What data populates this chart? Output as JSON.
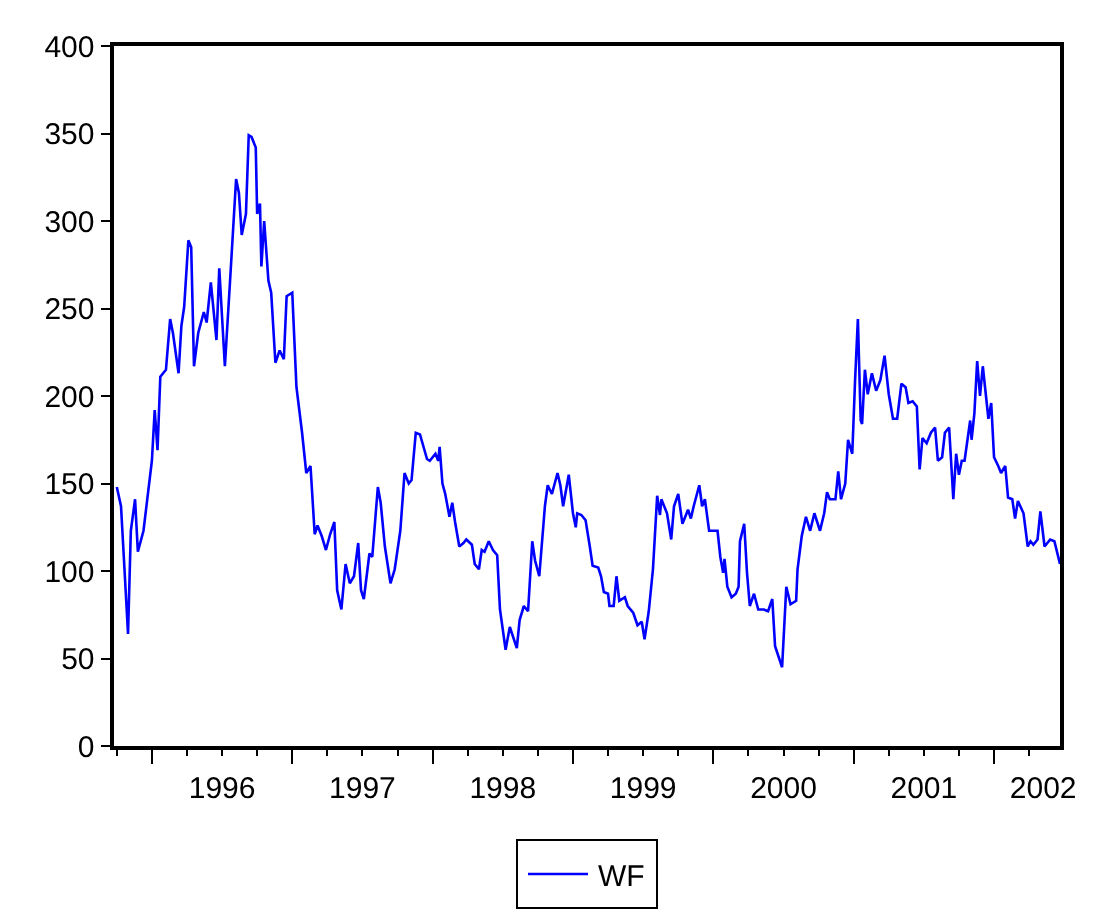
{
  "chart_data": {
    "type": "line",
    "xlim": [
      1995.73,
      2002.47
    ],
    "ylim": [
      0,
      400
    ],
    "xticks": [
      {
        "value": 1995.75,
        "label": null
      },
      {
        "value": 1996.25,
        "label": null
      },
      {
        "value": 1996.5,
        "label": null
      },
      {
        "value": 1996.75,
        "label": null
      },
      {
        "value": 1997.25,
        "label": null
      },
      {
        "value": 1997.5,
        "label": null
      },
      {
        "value": 1997.75,
        "label": null
      },
      {
        "value": 1998.25,
        "label": null
      },
      {
        "value": 1998.5,
        "label": null
      },
      {
        "value": 1998.75,
        "label": null
      },
      {
        "value": 1999.25,
        "label": null
      },
      {
        "value": 1999.5,
        "label": null
      },
      {
        "value": 1999.75,
        "label": null
      },
      {
        "value": 2000.25,
        "label": null
      },
      {
        "value": 2000.5,
        "label": null
      },
      {
        "value": 2000.75,
        "label": null
      },
      {
        "value": 2001.25,
        "label": null
      },
      {
        "value": 2001.5,
        "label": null
      },
      {
        "value": 2001.75,
        "label": null
      },
      {
        "value": 2002.25,
        "label": null
      },
      {
        "value": 1996,
        "label": null
      },
      {
        "value": 1997,
        "label": null
      },
      {
        "value": 1998,
        "label": null
      },
      {
        "value": 1999,
        "label": null
      },
      {
        "value": 2000,
        "label": null
      },
      {
        "value": 2001,
        "label": null
      },
      {
        "value": 2002,
        "label": null
      },
      {
        "value": 1996.5,
        "label": "1996"
      },
      {
        "value": 1997.5,
        "label": "1997"
      },
      {
        "value": 1998.5,
        "label": "1998"
      },
      {
        "value": 1999.5,
        "label": "1999"
      },
      {
        "value": 2000.5,
        "label": "2000"
      },
      {
        "value": 2001.5,
        "label": "2001"
      },
      {
        "value": 2002.35,
        "label": "2002"
      }
    ],
    "yticks": [
      0,
      50,
      100,
      150,
      200,
      250,
      300,
      350,
      400
    ],
    "grid": false,
    "legend": "bottom",
    "marker": "none",
    "line_style": "solid",
    "series": [
      {
        "name": "WF",
        "color": "#0000ff",
        "x": [
          1995.75,
          1995.78,
          1995.83,
          1995.85,
          1995.88,
          1995.9,
          1995.94,
          1996.0,
          1996.02,
          1996.04,
          1996.06,
          1996.1,
          1996.13,
          1996.15,
          1996.19,
          1996.21,
          1996.23,
          1996.26,
          1996.28,
          1996.3,
          1996.33,
          1996.37,
          1996.39,
          1996.42,
          1996.46,
          1996.48,
          1996.52,
          1996.56,
          1996.6,
          1996.62,
          1996.64,
          1996.67,
          1996.69,
          1996.71,
          1996.74,
          1996.75,
          1996.77,
          1996.78,
          1996.8,
          1996.83,
          1996.85,
          1996.88,
          1996.91,
          1996.94,
          1996.96,
          1997.0,
          1997.03,
          1997.07,
          1997.1,
          1997.13,
          1997.16,
          1997.18,
          1997.21,
          1997.24,
          1997.27,
          1997.3,
          1997.32,
          1997.35,
          1997.38,
          1997.41,
          1997.44,
          1997.47,
          1997.49,
          1997.51,
          1997.55,
          1997.57,
          1997.61,
          1997.63,
          1997.66,
          1997.7,
          1997.73,
          1997.77,
          1997.8,
          1997.83,
          1997.85,
          1997.88,
          1997.91,
          1997.96,
          1997.98,
          1998.02,
          1998.04,
          1998.05,
          1998.07,
          1998.09,
          1998.12,
          1998.14,
          1998.16,
          1998.19,
          1998.22,
          1998.24,
          1998.28,
          1998.3,
          1998.33,
          1998.35,
          1998.37,
          1998.4,
          1998.43,
          1998.46,
          1998.48,
          1998.52,
          1998.55,
          1998.6,
          1998.62,
          1998.65,
          1998.68,
          1998.71,
          1998.73,
          1998.76,
          1998.8,
          1998.82,
          1998.85,
          1998.89,
          1998.91,
          1998.93,
          1998.97,
          1999.0,
          1999.02,
          1999.03,
          1999.06,
          1999.09,
          1999.12,
          1999.14,
          1999.18,
          1999.2,
          1999.22,
          1999.25,
          1999.26,
          1999.29,
          1999.31,
          1999.33,
          1999.37,
          1999.39,
          1999.43,
          1999.46,
          1999.49,
          1999.51,
          1999.54,
          1999.57,
          1999.6,
          1999.62,
          1999.63,
          1999.67,
          1999.7,
          1999.72,
          1999.75,
          1999.78,
          1999.82,
          1999.84,
          1999.86,
          1999.9,
          1999.92,
          1999.94,
          1999.97,
          2000.03,
          2000.05,
          2000.07,
          2000.08,
          2000.1,
          2000.13,
          2000.16,
          2000.18,
          2000.19,
          2000.22,
          2000.24,
          2000.26,
          2000.29,
          2000.32,
          2000.36,
          2000.39,
          2000.42,
          2000.44,
          2000.49,
          2000.52,
          2000.55,
          2000.59,
          2000.6,
          2000.63,
          2000.66,
          2000.69,
          2000.72,
          2000.76,
          2000.79,
          2000.81,
          2000.83,
          2000.87,
          2000.89,
          2000.91,
          2000.94,
          2000.96,
          2000.99,
          2001.01,
          2001.03,
          2001.05,
          2001.06,
          2001.08,
          2001.1,
          2001.13,
          2001.16,
          2001.19,
          2001.22,
          2001.25,
          2001.28,
          2001.31,
          2001.34,
          2001.37,
          2001.39,
          2001.42,
          2001.45,
          2001.47,
          2001.49,
          2001.52,
          2001.55,
          2001.58,
          2001.6,
          2001.63,
          2001.65,
          2001.68,
          2001.71,
          2001.73,
          2001.75,
          2001.77,
          2001.79,
          2001.83,
          2001.84,
          2001.86,
          2001.88,
          2001.9,
          2001.92,
          2001.96,
          2001.98,
          2002.0,
          2002.03,
          2002.05,
          2002.08,
          2002.1,
          2002.13,
          2002.15,
          2002.17,
          2002.21,
          2002.24,
          2002.26,
          2002.28,
          2002.31,
          2002.33,
          2002.36,
          2002.4,
          2002.43,
          2002.47
        ],
        "values": [
          148,
          137,
          64,
          123,
          141,
          111,
          123,
          163,
          192,
          169,
          211,
          215,
          244,
          236,
          213,
          240,
          251,
          289,
          285,
          217,
          236,
          248,
          242,
          265,
          232,
          273,
          217,
          270,
          324,
          316,
          292,
          304,
          349,
          348,
          342,
          304,
          310,
          274,
          300,
          266,
          259,
          219,
          226,
          221,
          257,
          259,
          205,
          179,
          156,
          160,
          121,
          126,
          120,
          112,
          121,
          128,
          89,
          78,
          104,
          93,
          97,
          116,
          89,
          84,
          110,
          108,
          148,
          139,
          114,
          93,
          101,
          123,
          156,
          150,
          152,
          179,
          178,
          164,
          163,
          167,
          163,
          171,
          150,
          144,
          131,
          139,
          128,
          114,
          116,
          118,
          115,
          104,
          101,
          112,
          111,
          117,
          112,
          109,
          78,
          55,
          68,
          56,
          72,
          80,
          77,
          117,
          106,
          97,
          137,
          149,
          144,
          156,
          149,
          137,
          155,
          133,
          125,
          133,
          132,
          129,
          114,
          103,
          102,
          97,
          88,
          87,
          80,
          80,
          97,
          83,
          85,
          80,
          76,
          69,
          71,
          61,
          77,
          101,
          143,
          132,
          141,
          133,
          118,
          137,
          144,
          127,
          135,
          130,
          137,
          149,
          137,
          141,
          123,
          123,
          108,
          99,
          107,
          91,
          85,
          87,
          91,
          117,
          127,
          99,
          80,
          87,
          78,
          78,
          77,
          84,
          57,
          45,
          91,
          81,
          83,
          101,
          120,
          131,
          123,
          133,
          123,
          133,
          145,
          141,
          141,
          157,
          141,
          150,
          175,
          167,
          209,
          244,
          186,
          184,
          215,
          201,
          213,
          203,
          209,
          223,
          201,
          187,
          187,
          207,
          205,
          196,
          197,
          194,
          158,
          176,
          173,
          179,
          182,
          163,
          165,
          179,
          182,
          141,
          167,
          155,
          163,
          163,
          186,
          175,
          190,
          220,
          200,
          217,
          187,
          196,
          165,
          160,
          156,
          160,
          142,
          141,
          130,
          140,
          133,
          114,
          117,
          115,
          118,
          134,
          114,
          118,
          117,
          104
        ]
      }
    ]
  }
}
